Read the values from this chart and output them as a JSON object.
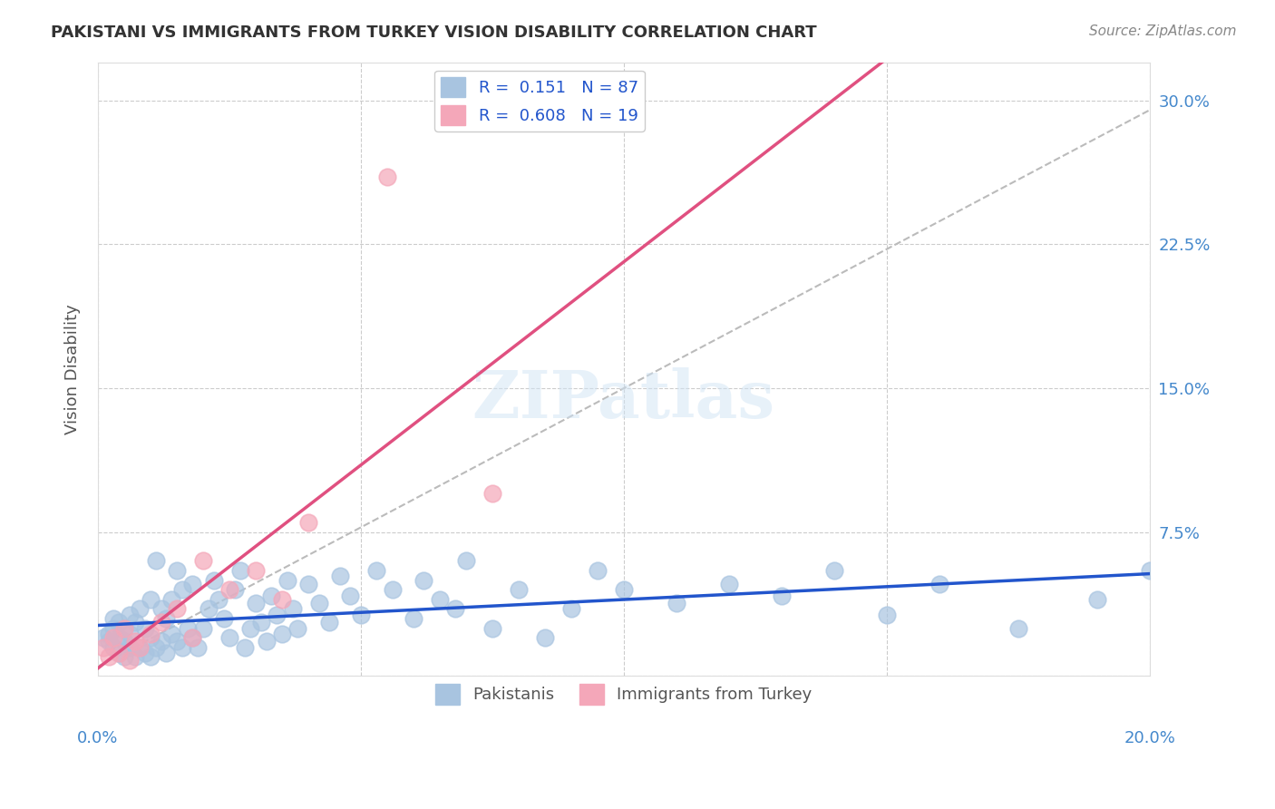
{
  "title": "PAKISTANI VS IMMIGRANTS FROM TURKEY VISION DISABILITY CORRELATION CHART",
  "source": "Source: ZipAtlas.com",
  "xlabel": "",
  "ylabel": "Vision Disability",
  "xlim": [
    0.0,
    0.2
  ],
  "ylim": [
    0.0,
    0.32
  ],
  "yticks": [
    0.0,
    0.075,
    0.15,
    0.225,
    0.3
  ],
  "ytick_labels": [
    "",
    "7.5%",
    "15.0%",
    "22.5%",
    "30.0%"
  ],
  "xticks": [
    0.0,
    0.05,
    0.1,
    0.15,
    0.2
  ],
  "xtick_labels": [
    "0.0%",
    "",
    "",
    "",
    "20.0%"
  ],
  "r_blue": 0.151,
  "n_blue": 87,
  "r_pink": 0.608,
  "n_pink": 19,
  "blue_color": "#a8c4e0",
  "pink_color": "#f4a7b9",
  "blue_line_color": "#2255cc",
  "pink_line_color": "#e05080",
  "title_color": "#333333",
  "axis_label_color": "#555555",
  "tick_color": "#4488cc",
  "background_color": "#ffffff",
  "grid_color": "#cccccc",
  "watermark": "ZIPatlas",
  "blue_scatter_x": [
    0.001,
    0.002,
    0.002,
    0.003,
    0.003,
    0.003,
    0.004,
    0.004,
    0.004,
    0.005,
    0.005,
    0.005,
    0.006,
    0.006,
    0.006,
    0.007,
    0.007,
    0.008,
    0.008,
    0.009,
    0.009,
    0.01,
    0.01,
    0.01,
    0.011,
    0.011,
    0.012,
    0.012,
    0.013,
    0.013,
    0.014,
    0.014,
    0.015,
    0.015,
    0.016,
    0.016,
    0.017,
    0.018,
    0.018,
    0.019,
    0.02,
    0.021,
    0.022,
    0.023,
    0.024,
    0.025,
    0.026,
    0.027,
    0.028,
    0.029,
    0.03,
    0.031,
    0.032,
    0.033,
    0.034,
    0.035,
    0.036,
    0.037,
    0.038,
    0.04,
    0.042,
    0.044,
    0.046,
    0.048,
    0.05,
    0.053,
    0.056,
    0.06,
    0.062,
    0.065,
    0.068,
    0.07,
    0.075,
    0.08,
    0.085,
    0.09,
    0.095,
    0.1,
    0.11,
    0.12,
    0.13,
    0.14,
    0.15,
    0.16,
    0.175,
    0.19,
    0.2
  ],
  "blue_scatter_y": [
    0.02,
    0.018,
    0.022,
    0.015,
    0.025,
    0.03,
    0.012,
    0.02,
    0.028,
    0.01,
    0.018,
    0.025,
    0.015,
    0.022,
    0.032,
    0.01,
    0.028,
    0.015,
    0.035,
    0.012,
    0.025,
    0.01,
    0.02,
    0.04,
    0.015,
    0.06,
    0.018,
    0.035,
    0.012,
    0.03,
    0.022,
    0.04,
    0.018,
    0.055,
    0.015,
    0.045,
    0.025,
    0.02,
    0.048,
    0.015,
    0.025,
    0.035,
    0.05,
    0.04,
    0.03,
    0.02,
    0.045,
    0.055,
    0.015,
    0.025,
    0.038,
    0.028,
    0.018,
    0.042,
    0.032,
    0.022,
    0.05,
    0.035,
    0.025,
    0.048,
    0.038,
    0.028,
    0.052,
    0.042,
    0.032,
    0.055,
    0.045,
    0.03,
    0.05,
    0.04,
    0.035,
    0.06,
    0.025,
    0.045,
    0.02,
    0.035,
    0.055,
    0.045,
    0.038,
    0.048,
    0.042,
    0.055,
    0.032,
    0.048,
    0.025,
    0.04,
    0.055
  ],
  "pink_scatter_x": [
    0.001,
    0.002,
    0.003,
    0.004,
    0.005,
    0.006,
    0.007,
    0.008,
    0.01,
    0.012,
    0.015,
    0.018,
    0.02,
    0.025,
    0.03,
    0.035,
    0.04,
    0.055,
    0.075
  ],
  "pink_scatter_y": [
    0.015,
    0.01,
    0.02,
    0.012,
    0.025,
    0.008,
    0.018,
    0.015,
    0.022,
    0.028,
    0.035,
    0.02,
    0.06,
    0.045,
    0.055,
    0.04,
    0.08,
    0.26,
    0.095
  ]
}
